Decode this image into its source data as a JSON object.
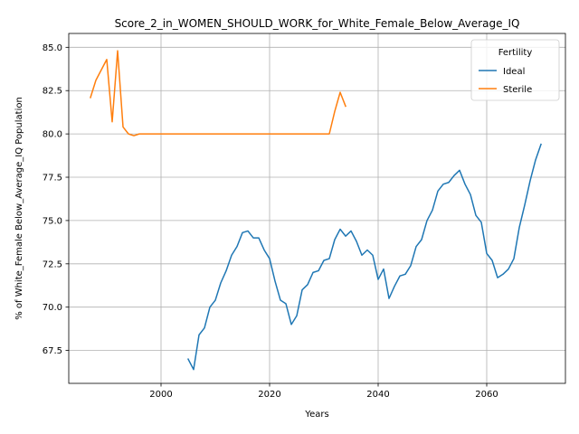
{
  "chart_data": {
    "type": "line",
    "title": "Score_2_in_WOMEN_SHOULD_WORK_for_White_Female_Below_Average_IQ",
    "xlabel": "Years",
    "ylabel": "% of White_Female Below_Average_IQ Population",
    "xlim": [
      1983,
      2074.5
    ],
    "ylim": [
      65.6,
      85.8
    ],
    "xticks": [
      2000,
      2020,
      2040,
      2060
    ],
    "yticks": [
      67.5,
      70.0,
      72.5,
      75.0,
      77.5,
      80.0,
      82.5,
      85.0
    ],
    "grid": true,
    "legend": {
      "title": "Fertility",
      "position": "top-right"
    },
    "series": [
      {
        "name": "Ideal",
        "color": "#1f77b4",
        "x": [
          2005,
          2006,
          2007,
          2008,
          2009,
          2010,
          2011,
          2012,
          2013,
          2014,
          2015,
          2016,
          2017,
          2018,
          2019,
          2020,
          2021,
          2022,
          2023,
          2024,
          2025,
          2026,
          2027,
          2028,
          2029,
          2030,
          2031,
          2032,
          2033,
          2034,
          2035,
          2036,
          2037,
          2038,
          2039,
          2040,
          2041,
          2042,
          2043,
          2044,
          2045,
          2046,
          2047,
          2048,
          2049,
          2050,
          2051,
          2052,
          2053,
          2054,
          2055,
          2056,
          2057,
          2058,
          2059,
          2060,
          2061,
          2062,
          2063,
          2064,
          2065,
          2066,
          2067,
          2068,
          2069,
          2070
        ],
        "y": [
          67.0,
          66.4,
          68.4,
          68.8,
          70.0,
          70.4,
          71.4,
          72.1,
          73.0,
          73.5,
          74.3,
          74.4,
          74.0,
          74.0,
          73.3,
          72.8,
          71.5,
          70.4,
          70.2,
          69.0,
          69.5,
          71.0,
          71.3,
          72.0,
          72.1,
          72.7,
          72.8,
          73.9,
          74.5,
          74.1,
          74.4,
          73.8,
          73.0,
          73.3,
          73.0,
          71.6,
          72.2,
          70.5,
          71.2,
          71.8,
          71.9,
          72.4,
          73.5,
          73.9,
          75.0,
          75.6,
          76.7,
          77.1,
          77.2,
          77.6,
          77.9,
          77.1,
          76.5,
          75.3,
          74.9,
          73.1,
          72.7,
          71.7,
          71.9,
          72.2,
          72.8,
          74.6,
          75.9,
          77.3,
          78.5,
          79.4
        ]
      },
      {
        "name": "Sterile",
        "color": "#ff7f0e",
        "x": [
          1987,
          1988,
          1989,
          1990,
          1991,
          1992,
          1993,
          1994,
          1995,
          1996,
          1997,
          1998,
          1999,
          2000,
          2001,
          2002,
          2003,
          2004,
          2005,
          2006,
          2007,
          2008,
          2009,
          2010,
          2011,
          2012,
          2013,
          2014,
          2015,
          2016,
          2017,
          2018,
          2019,
          2020,
          2021,
          2022,
          2023,
          2024,
          2025,
          2026,
          2027,
          2028,
          2029,
          2030,
          2031,
          2032,
          2033,
          2034
        ],
        "y": [
          82.1,
          83.1,
          83.7,
          84.3,
          80.7,
          84.8,
          80.4,
          80.0,
          79.9,
          80.0,
          80.0,
          80.0,
          80.0,
          80.0,
          80.0,
          80.0,
          80.0,
          80.0,
          80.0,
          80.0,
          80.0,
          80.0,
          80.0,
          80.0,
          80.0,
          80.0,
          80.0,
          80.0,
          80.0,
          80.0,
          80.0,
          80.0,
          80.0,
          80.0,
          80.0,
          80.0,
          80.0,
          80.0,
          80.0,
          80.0,
          80.0,
          80.0,
          80.0,
          80.0,
          80.0,
          81.3,
          82.4,
          81.6
        ]
      }
    ]
  }
}
